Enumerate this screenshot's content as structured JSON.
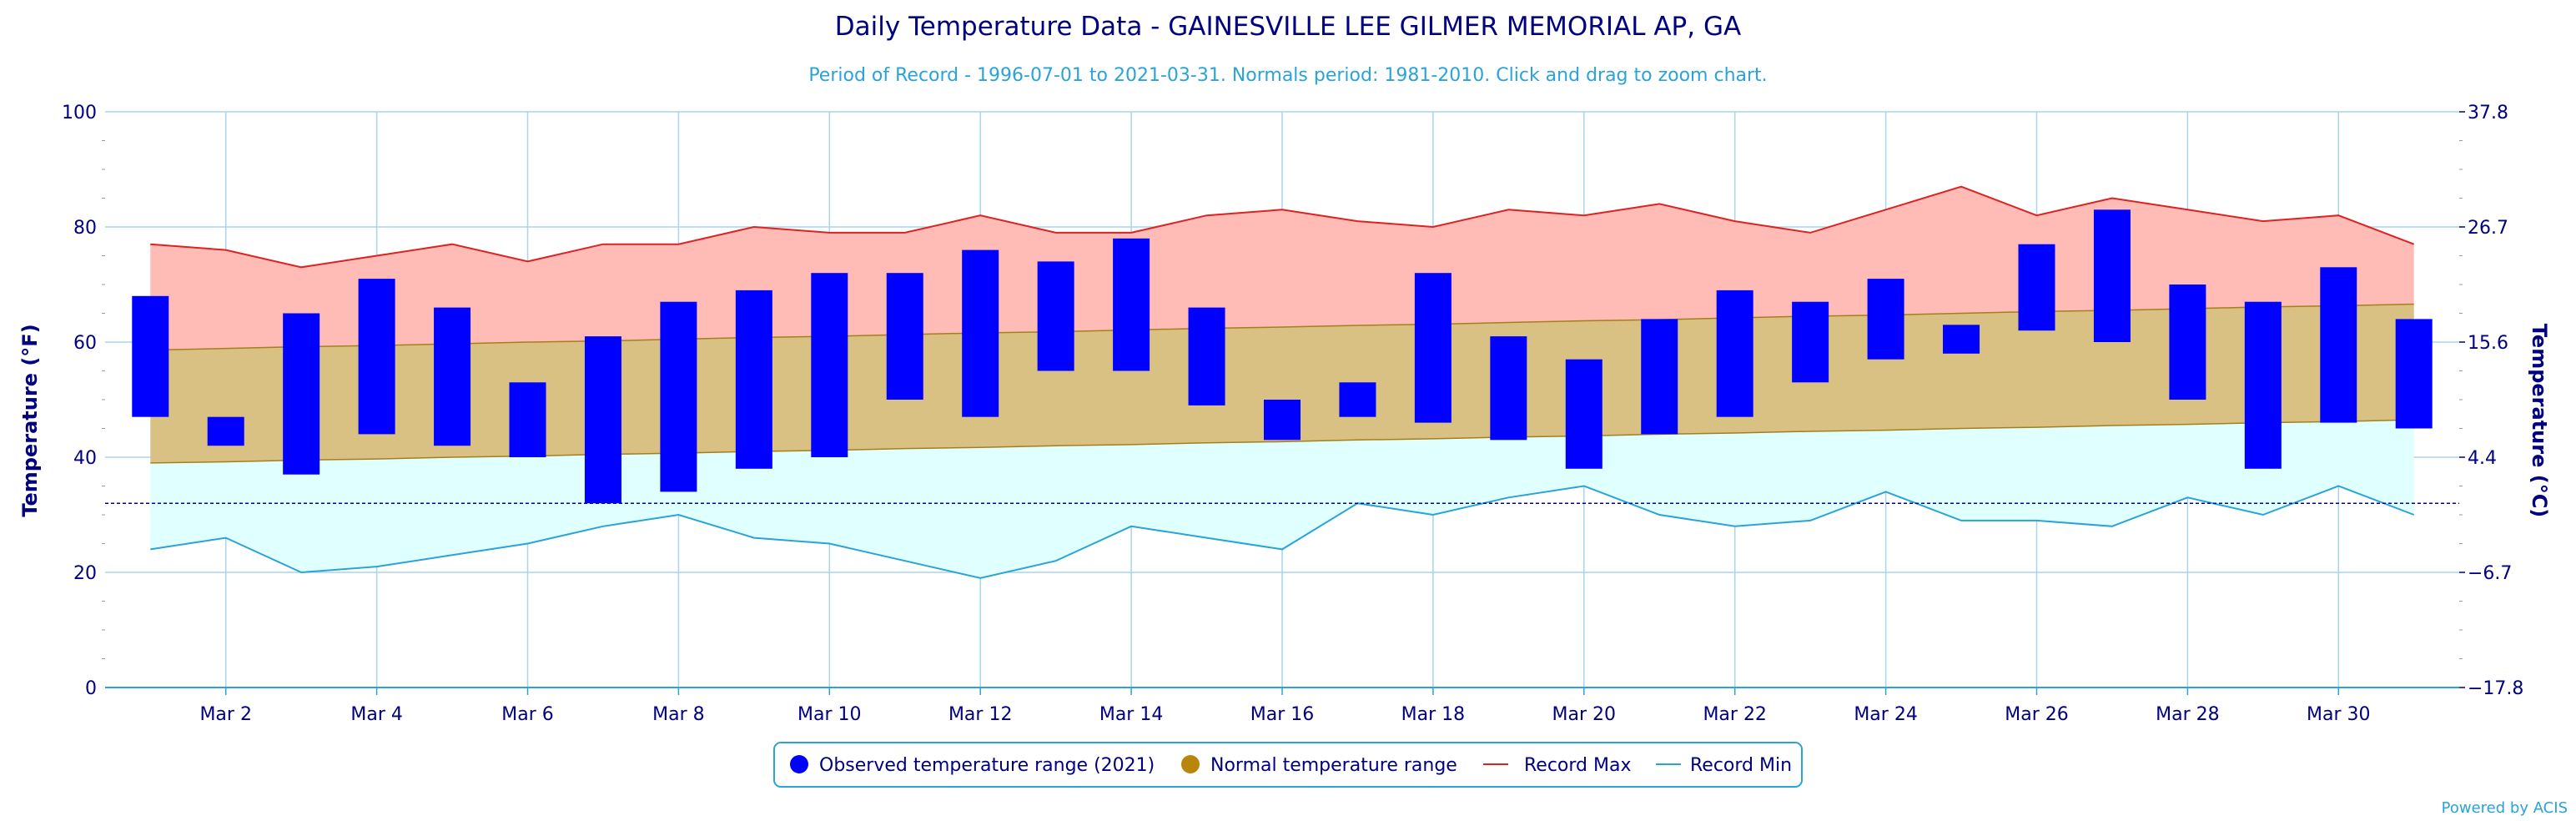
{
  "chart_data": {
    "type": "bar",
    "title": "Daily Temperature Data - GAINESVILLE LEE GILMER MEMORIAL AP, GA",
    "subtitle": "Period of Record - 1996-07-01 to 2021-03-31. Normals period: 1981-2010. Click and drag to zoom chart.",
    "ylabel_left": "Temperature (°F)",
    "ylabel_right": "Temperature (°C)",
    "ylim": [
      0,
      100
    ],
    "xlim": [
      0.4,
      31.6
    ],
    "y_ticks": [
      0,
      20,
      40,
      60,
      80,
      100
    ],
    "y_ticks_right": [
      "−17.8",
      "−6.7",
      "4.4",
      "15.6",
      "26.7",
      "37.8"
    ],
    "x_ticks": [
      {
        "day": 2,
        "label": "Mar 2"
      },
      {
        "day": 4,
        "label": "Mar 4"
      },
      {
        "day": 6,
        "label": "Mar 6"
      },
      {
        "day": 8,
        "label": "Mar 8"
      },
      {
        "day": 10,
        "label": "Mar 10"
      },
      {
        "day": 12,
        "label": "Mar 12"
      },
      {
        "day": 14,
        "label": "Mar 14"
      },
      {
        "day": 16,
        "label": "Mar 16"
      },
      {
        "day": 18,
        "label": "Mar 18"
      },
      {
        "day": 20,
        "label": "Mar 20"
      },
      {
        "day": 22,
        "label": "Mar 22"
      },
      {
        "day": 24,
        "label": "Mar 24"
      },
      {
        "day": 26,
        "label": "Mar 26"
      },
      {
        "day": 28,
        "label": "Mar 28"
      },
      {
        "day": 30,
        "label": "Mar 30"
      }
    ],
    "freezing_line": 32,
    "days": [
      1,
      2,
      3,
      4,
      5,
      6,
      7,
      8,
      9,
      10,
      11,
      12,
      13,
      14,
      15,
      16,
      17,
      18,
      19,
      20,
      21,
      22,
      23,
      24,
      25,
      26,
      27,
      28,
      29,
      30,
      31
    ],
    "observed_low": [
      47,
      42,
      37,
      44,
      42,
      40,
      32,
      34,
      38,
      40,
      50,
      47,
      55,
      55,
      49,
      43,
      47,
      46,
      43,
      38,
      44,
      47,
      53,
      57,
      58,
      62,
      60,
      50,
      38,
      46,
      45
    ],
    "observed_high": [
      68,
      47,
      65,
      71,
      66,
      53,
      61,
      67,
      69,
      72,
      72,
      76,
      74,
      78,
      66,
      50,
      53,
      72,
      61,
      57,
      64,
      69,
      67,
      71,
      63,
      77,
      83,
      70,
      67,
      73,
      64
    ],
    "normal_high": [
      58.6,
      58.9,
      59.2,
      59.4,
      59.7,
      60.0,
      60.2,
      60.5,
      60.8,
      61.0,
      61.3,
      61.6,
      61.8,
      62.1,
      62.4,
      62.6,
      62.9,
      63.1,
      63.4,
      63.7,
      63.9,
      64.2,
      64.5,
      64.7,
      65.0,
      65.3,
      65.5,
      65.8,
      66.1,
      66.3,
      66.6
    ],
    "normal_low": [
      39.0,
      39.2,
      39.5,
      39.7,
      40.0,
      40.2,
      40.5,
      40.7,
      41.0,
      41.2,
      41.5,
      41.7,
      42.0,
      42.2,
      42.5,
      42.7,
      43.0,
      43.2,
      43.5,
      43.7,
      44.0,
      44.2,
      44.5,
      44.7,
      45.0,
      45.2,
      45.5,
      45.7,
      46.0,
      46.2,
      46.5
    ],
    "record_max": [
      77,
      76,
      73,
      75,
      77,
      74,
      77,
      77,
      80,
      79,
      79,
      82,
      79,
      79,
      82,
      83,
      81,
      80,
      83,
      82,
      84,
      81,
      79,
      83,
      87,
      82,
      85,
      83,
      81,
      82,
      77
    ],
    "record_min": [
      24,
      26,
      20,
      21,
      23,
      25,
      28,
      30,
      26,
      25,
      22,
      19,
      22,
      28,
      26,
      24,
      32,
      30,
      33,
      35,
      30,
      28,
      29,
      34,
      29,
      29,
      28,
      33,
      30,
      35,
      30
    ],
    "legend": {
      "placement": "bottom-center",
      "items": [
        {
          "label": "Observed temperature range (2021)",
          "color": "#0000ff",
          "symbol": "circle"
        },
        {
          "label": "Normal temperature range",
          "color": "#b8860b",
          "symbol": "circle"
        },
        {
          "label": "Record Max",
          "color": "#dd2222",
          "symbol": "line"
        },
        {
          "label": "Record Min",
          "color": "#2aa3d8",
          "symbol": "line"
        }
      ]
    },
    "credit": "Powered by ACIS",
    "colors": {
      "observed": "#0000ff",
      "normal_fill": "#d9c184",
      "normal_line": "#a57f1a",
      "record_max_line": "#dd2222",
      "record_max_fill": "#ffbcb7",
      "record_min_line": "#2aa3d8",
      "record_min_fill": "#e0ffff",
      "grid": "#a8d4ee",
      "axis_text": "#000080"
    }
  }
}
